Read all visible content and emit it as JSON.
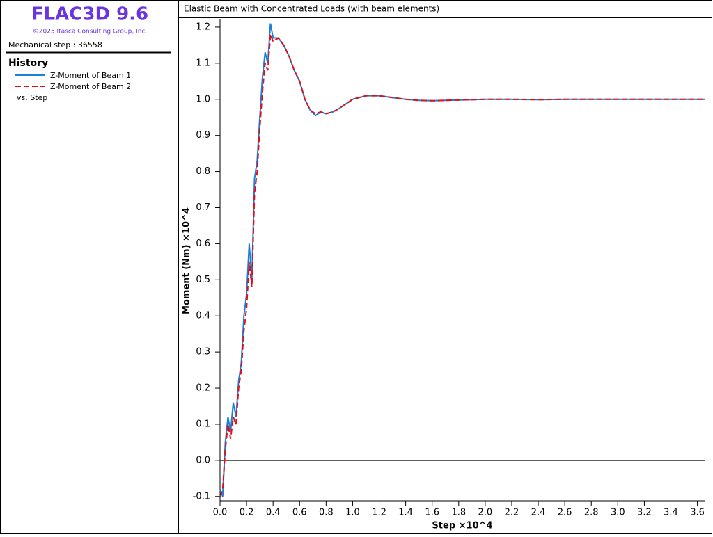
{
  "app": {
    "title": "FLAC3D 9.6",
    "copyright": "©2025 Itasca Consulting Group, Inc.",
    "step": "Mechanical step : 36558"
  },
  "history": {
    "heading": "History",
    "vs": "vs. Step"
  },
  "chart_data": {
    "type": "line",
    "title": "Elastic Beam with Concentrated Loads (with beam elements)",
    "x_label": "Step ×10^4",
    "y_label": "Moment (Nm) ×10^4",
    "x": [
      0,
      0.02,
      0.04,
      0.06,
      0.08,
      0.1,
      0.12,
      0.14,
      0.16,
      0.18,
      0.2,
      0.22,
      0.24,
      0.26,
      0.28,
      0.3,
      0.32,
      0.34,
      0.36,
      0.38,
      0.4,
      0.44,
      0.48,
      0.52,
      0.56,
      0.6,
      0.64,
      0.68,
      0.72,
      0.76,
      0.8,
      0.85,
      0.9,
      1.0,
      1.1,
      1.2,
      1.3,
      1.4,
      1.5,
      1.6,
      1.8,
      2.0,
      2.2,
      2.4,
      2.6,
      2.8,
      3.0,
      3.2,
      3.4,
      3.6558
    ],
    "series": [
      {
        "name": "Z-Moment of Beam 1",
        "color": "#1e7fd6",
        "dash": false,
        "values": [
          -0.08,
          -0.1,
          0.05,
          0.12,
          0.08,
          0.16,
          0.12,
          0.22,
          0.27,
          0.4,
          0.46,
          0.6,
          0.5,
          0.78,
          0.83,
          0.95,
          1.06,
          1.13,
          1.1,
          1.21,
          1.17,
          1.17,
          1.15,
          1.12,
          1.08,
          1.05,
          1.0,
          0.97,
          0.955,
          0.965,
          0.96,
          0.965,
          0.975,
          1.0,
          1.01,
          1.01,
          1.005,
          1.0,
          0.997,
          0.996,
          0.998,
          1.0,
          1.0,
          0.999,
          1.0,
          1.0,
          1.0,
          1.0,
          1.0,
          1.0
        ]
      },
      {
        "name": "Z-Moment of Beam 2",
        "color": "#e0101a",
        "dash": true,
        "values": [
          -0.1,
          -0.08,
          0.03,
          0.1,
          0.06,
          0.12,
          0.1,
          0.2,
          0.25,
          0.36,
          0.42,
          0.55,
          0.48,
          0.74,
          0.8,
          0.92,
          1.02,
          1.1,
          1.08,
          1.18,
          1.16,
          1.17,
          1.15,
          1.12,
          1.08,
          1.05,
          1.0,
          0.97,
          0.96,
          0.965,
          0.96,
          0.965,
          0.975,
          1.0,
          1.01,
          1.01,
          1.005,
          1.0,
          0.997,
          0.996,
          0.998,
          1.0,
          1.0,
          0.999,
          1.0,
          1.0,
          1.0,
          1.0,
          1.0,
          1.0
        ]
      }
    ],
    "xlim": [
      0,
      3.66
    ],
    "ylim": [
      -0.112,
      1.223
    ],
    "xticks": [
      {
        "value": 0,
        "label": "0.0"
      },
      0.2,
      0.4,
      0.6,
      0.8,
      {
        "value": 1,
        "label": "1.0"
      },
      1.2,
      1.4,
      1.6,
      1.8,
      {
        "value": 2,
        "label": "2.0"
      },
      2.2,
      2.4,
      2.6,
      2.8,
      {
        "value": 3,
        "label": "3.0"
      },
      3.2,
      3.4,
      3.6
    ],
    "yticks": [
      -0.1,
      {
        "value": 0,
        "label": "0.0"
      },
      0.1,
      0.2,
      0.3,
      0.4,
      0.5,
      0.6,
      0.7,
      0.8,
      0.9,
      {
        "value": 1,
        "label": "1.0"
      },
      1.1,
      1.2
    ]
  }
}
